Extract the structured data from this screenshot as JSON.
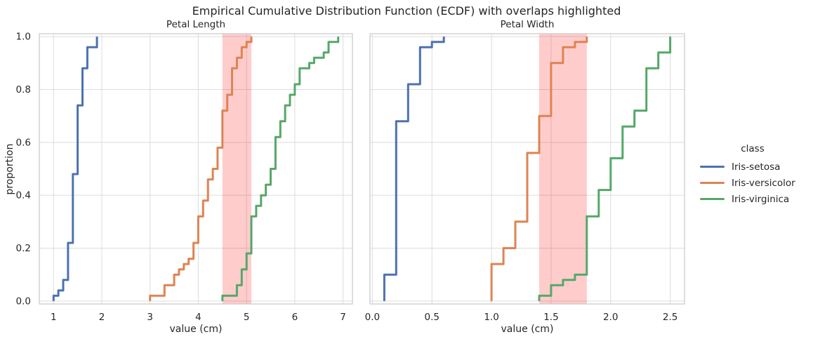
{
  "figure": {
    "title": "Empirical Cumulative Distribution Function (ECDF) with overlaps highlighted",
    "background_color": "#ffffff",
    "grid_color": "#dcdcdc",
    "spine_color": "#cccccc",
    "text_color": "#262626",
    "highlight_color": "#ff0000",
    "highlight_alpha": 0.2
  },
  "legend": {
    "title": "class",
    "entries": [
      {
        "label": "Iris-setosa",
        "color": "#4c72b0"
      },
      {
        "label": "Iris-versicolor",
        "color": "#dd8452"
      },
      {
        "label": "Iris-virginica",
        "color": "#55a868"
      }
    ]
  },
  "chart_data": [
    {
      "type": "line",
      "subtype": "ecdf-step",
      "title": "Petal Length",
      "xlabel": "value (cm)",
      "ylabel": "proportion",
      "grid": true,
      "xlim": [
        0.705,
        7.195
      ],
      "ylim": [
        -0.011,
        1.011
      ],
      "xticks": [
        1,
        2,
        3,
        4,
        5,
        6,
        7
      ],
      "xtick_labels": [
        "1",
        "2",
        "3",
        "4",
        "5",
        "6",
        "7"
      ],
      "yticks": [
        0.0,
        0.2,
        0.4,
        0.6,
        0.8,
        1.0
      ],
      "ytick_labels": [
        "0.0",
        "0.2",
        "0.4",
        "0.6",
        "0.8",
        "1.0"
      ],
      "show_ytick_labels": true,
      "highlight_span": [
        4.5,
        5.1
      ],
      "series": [
        {
          "name": "Iris-setosa",
          "color": "#4c72b0",
          "x": [
            1.0,
            1.1,
            1.2,
            1.3,
            1.4,
            1.5,
            1.6,
            1.7,
            1.9
          ],
          "proportion": [
            0.02,
            0.04,
            0.08,
            0.22,
            0.48,
            0.74,
            0.88,
            0.96,
            1.0
          ]
        },
        {
          "name": "Iris-versicolor",
          "color": "#dd8452",
          "x": [
            3.0,
            3.3,
            3.5,
            3.6,
            3.7,
            3.8,
            3.9,
            4.0,
            4.1,
            4.2,
            4.3,
            4.4,
            4.5,
            4.6,
            4.7,
            4.8,
            4.9,
            5.0,
            5.1
          ],
          "proportion": [
            0.02,
            0.06,
            0.1,
            0.12,
            0.14,
            0.16,
            0.22,
            0.32,
            0.38,
            0.46,
            0.5,
            0.58,
            0.72,
            0.78,
            0.88,
            0.92,
            0.96,
            0.98,
            1.0
          ]
        },
        {
          "name": "Iris-virginica",
          "color": "#55a868",
          "x": [
            4.5,
            4.8,
            4.9,
            5.0,
            5.1,
            5.2,
            5.3,
            5.4,
            5.5,
            5.6,
            5.7,
            5.8,
            5.9,
            6.0,
            6.1,
            6.3,
            6.4,
            6.6,
            6.7,
            6.9
          ],
          "proportion": [
            0.02,
            0.06,
            0.12,
            0.18,
            0.32,
            0.36,
            0.4,
            0.44,
            0.5,
            0.62,
            0.68,
            0.74,
            0.78,
            0.82,
            0.88,
            0.9,
            0.92,
            0.94,
            0.98,
            1.0
          ]
        }
      ]
    },
    {
      "type": "line",
      "subtype": "ecdf-step",
      "title": "Petal Width",
      "xlabel": "value (cm)",
      "ylabel": "proportion",
      "grid": true,
      "xlim": [
        -0.02,
        2.62
      ],
      "ylim": [
        -0.011,
        1.011
      ],
      "xticks": [
        0.0,
        0.5,
        1.0,
        1.5,
        2.0,
        2.5
      ],
      "xtick_labels": [
        "0.0",
        "0.5",
        "1.0",
        "1.5",
        "2.0",
        "2.5"
      ],
      "yticks": [
        0.0,
        0.2,
        0.4,
        0.6,
        0.8,
        1.0
      ],
      "ytick_labels": [
        "0.0",
        "0.2",
        "0.4",
        "0.6",
        "0.8",
        "1.0"
      ],
      "show_ytick_labels": false,
      "highlight_span": [
        1.4,
        1.8
      ],
      "series": [
        {
          "name": "Iris-setosa",
          "color": "#4c72b0",
          "x": [
            0.1,
            0.2,
            0.3,
            0.4,
            0.5,
            0.6
          ],
          "proportion": [
            0.1,
            0.68,
            0.82,
            0.96,
            0.98,
            1.0
          ]
        },
        {
          "name": "Iris-versicolor",
          "color": "#dd8452",
          "x": [
            1.0,
            1.1,
            1.2,
            1.3,
            1.4,
            1.5,
            1.6,
            1.7,
            1.8
          ],
          "proportion": [
            0.14,
            0.2,
            0.3,
            0.56,
            0.7,
            0.9,
            0.96,
            0.98,
            1.0
          ]
        },
        {
          "name": "Iris-virginica",
          "color": "#55a868",
          "x": [
            1.4,
            1.5,
            1.6,
            1.7,
            1.8,
            1.9,
            2.0,
            2.1,
            2.2,
            2.3,
            2.4,
            2.5
          ],
          "proportion": [
            0.02,
            0.06,
            0.08,
            0.1,
            0.32,
            0.42,
            0.54,
            0.66,
            0.72,
            0.88,
            0.94,
            1.0
          ]
        }
      ]
    }
  ]
}
